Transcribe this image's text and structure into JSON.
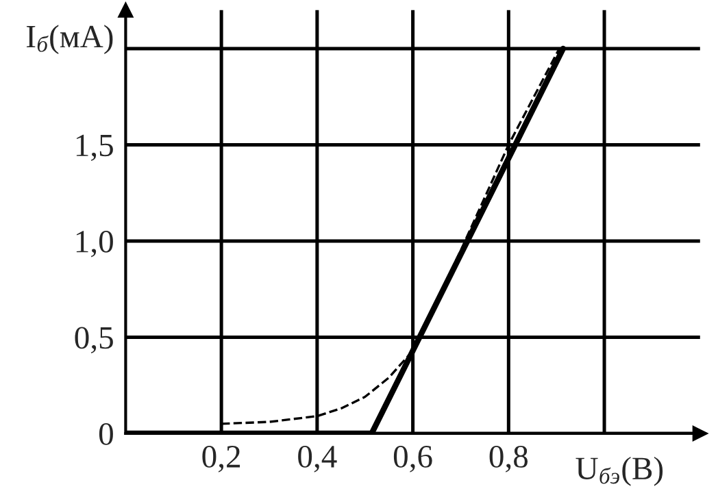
{
  "chart_data": {
    "type": "line",
    "xlabel": "U$_{бэ}$(В)",
    "ylabel": "I$_{б}$(мА)",
    "xlim": [
      0,
      1.2
    ],
    "ylim": [
      0,
      2.2
    ],
    "xticks": [
      {
        "value": 0.2,
        "label": "0,2"
      },
      {
        "value": 0.4,
        "label": "0,4"
      },
      {
        "value": 0.6,
        "label": "0,6"
      },
      {
        "value": 0.8,
        "label": "0,8"
      },
      {
        "value": 1.0,
        "label": null
      }
    ],
    "yticks": [
      {
        "value": 0,
        "label": "0"
      },
      {
        "value": 0.5,
        "label": "0,5"
      },
      {
        "value": 1.0,
        "label": "1,0"
      },
      {
        "value": 1.5,
        "label": "1,5"
      },
      {
        "value": 2.0,
        "label": null
      }
    ],
    "grid": true,
    "legend": false,
    "series": [
      {
        "color": "#000000",
        "line_style": "dashed",
        "x": [
          0.2,
          0.3,
          0.4,
          0.45,
          0.5,
          0.55,
          0.6,
          0.7,
          0.8,
          0.906
        ],
        "values": [
          0.05,
          0.06,
          0.09,
          0.13,
          0.19,
          0.29,
          0.43,
          0.95,
          1.5,
          2.0
        ]
      },
      {
        "color": "#000000",
        "line_style": "solid",
        "x": [
          0,
          0.514,
          0.914
        ],
        "values": [
          0,
          0,
          2.0
        ]
      }
    ]
  }
}
